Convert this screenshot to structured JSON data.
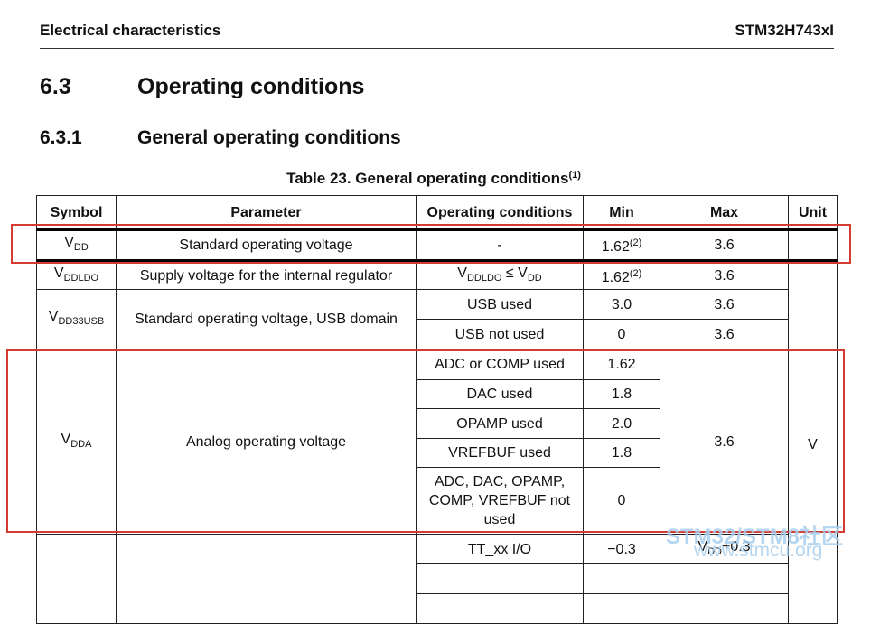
{
  "header": {
    "left": "Electrical characteristics",
    "right": "STM32H743xI"
  },
  "sections": [
    {
      "number": "6.3",
      "title": "Operating conditions"
    },
    {
      "number": "6.3.1",
      "title": "General operating conditions"
    }
  ],
  "table": {
    "caption": "Table 23. General operating conditions",
    "caption_note": "(1)",
    "headers": [
      "Symbol",
      "Parameter",
      "Operating conditions",
      "Min",
      "Max",
      "Unit"
    ],
    "rows": [
      {
        "symbol": {
          "base": "V",
          "sub": "DD"
        },
        "parameter": "Standard operating voltage",
        "conditions": "-",
        "min": "1.62",
        "min_note": "(2)",
        "max": "3.6"
      },
      {
        "symbol": {
          "base": "V",
          "sub": "DDLDO"
        },
        "parameter": "Supply voltage for the internal regulator",
        "conditions": {
          "left_base": "V",
          "left_sub": "DDLDO",
          "op": "≤",
          "right_base": "V",
          "right_sub": "DD"
        },
        "min": "1.62",
        "min_note": "(2)",
        "max": "3.6"
      },
      {
        "symbol": {
          "base": "V",
          "sub": "DD33USB"
        },
        "parameter": "Standard operating voltage, USB domain",
        "cases": [
          {
            "conditions": "USB used",
            "min": "3.0",
            "max": "3.6"
          },
          {
            "conditions": "USB not used",
            "min": "0",
            "max": "3.6"
          }
        ]
      },
      {
        "symbol": {
          "base": "V",
          "sub": "DDA"
        },
        "parameter": "Analog operating voltage",
        "max": "3.6",
        "cases": [
          {
            "conditions": "ADC or COMP used",
            "min": "1.62"
          },
          {
            "conditions": "DAC used",
            "min": "1.8"
          },
          {
            "conditions": "OPAMP used",
            "min": "2.0"
          },
          {
            "conditions": "VREFBUF used",
            "min": "1.8"
          },
          {
            "conditions": "ADC, DAC, OPAMP, COMP, VREFBUF not used",
            "min": "0"
          }
        ]
      },
      {
        "cases": [
          {
            "conditions": "TT_xx I/O",
            "min": "−0.3",
            "max": {
              "base": "V",
              "sub": "DD",
              "suffix": "+0.3"
            }
          }
        ]
      }
    ],
    "unit": "V"
  },
  "watermark": {
    "brand": "STM32/STM8社区",
    "url": "www.stmcu.org"
  }
}
